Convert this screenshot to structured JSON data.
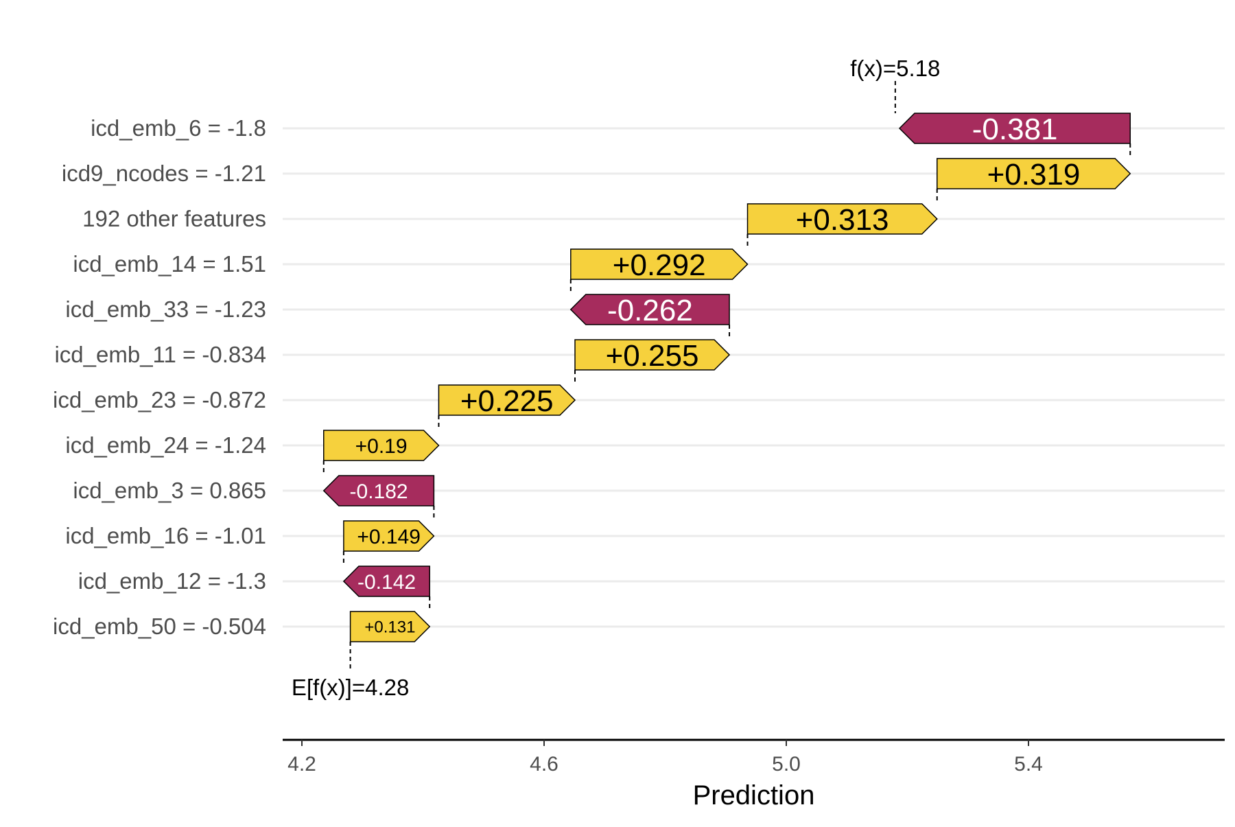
{
  "chart_data": {
    "type": "waterfall",
    "xlabel": "Prediction",
    "xlim": [
      4.17,
      5.72
    ],
    "xticks": [
      4.2,
      4.6,
      5.0,
      5.4
    ],
    "xtick_labels": [
      "4.2",
      "4.6",
      "5.0",
      "5.4"
    ],
    "grid": "horizontal",
    "base": {
      "label": "E[f(x)]=4.28",
      "value": 4.28
    },
    "final": {
      "label": "f(x)=5.18",
      "value": 5.18
    },
    "colors": {
      "positive": "#F6D13D",
      "negative": "#A62C5D",
      "gridline": "#EBEBEB",
      "axis": "#000000"
    },
    "features": [
      {
        "label": "icd_emb_6 = -1.8",
        "value": -0.381,
        "value_label": "-0.381"
      },
      {
        "label": "icd9_ncodes = -1.21",
        "value": 0.319,
        "value_label": "+0.319"
      },
      {
        "label": "192 other features",
        "value": 0.313,
        "value_label": "+0.313"
      },
      {
        "label": "icd_emb_14 = 1.51",
        "value": 0.292,
        "value_label": "+0.292"
      },
      {
        "label": "icd_emb_33 = -1.23",
        "value": -0.262,
        "value_label": "-0.262"
      },
      {
        "label": "icd_emb_11 = -0.834",
        "value": 0.255,
        "value_label": "+0.255"
      },
      {
        "label": "icd_emb_23 = -0.872",
        "value": 0.225,
        "value_label": "+0.225"
      },
      {
        "label": "icd_emb_24 = -1.24",
        "value": 0.19,
        "value_label": "+0.19"
      },
      {
        "label": "icd_emb_3 = 0.865",
        "value": -0.182,
        "value_label": "-0.182"
      },
      {
        "label": "icd_emb_16 = -1.01",
        "value": 0.149,
        "value_label": "+0.149"
      },
      {
        "label": "icd_emb_12 = -1.3",
        "value": -0.142,
        "value_label": "-0.142"
      },
      {
        "label": "icd_emb_50 = -0.504",
        "value": 0.131,
        "value_label": "+0.131"
      }
    ]
  }
}
